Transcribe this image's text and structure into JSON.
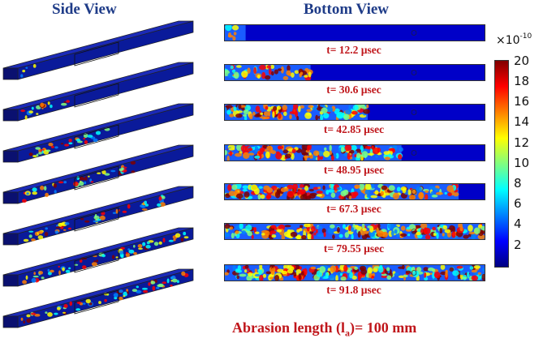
{
  "side_view_title": "Side View",
  "bottom_view_title": "Bottom View",
  "frames": [
    {
      "time_label": "t= 12.2 µsec",
      "wave_extent": 0.08,
      "intensity": 0.25
    },
    {
      "time_label": "t= 30.6 µsec",
      "wave_extent": 0.33,
      "intensity": 0.55
    },
    {
      "time_label": "t= 42.85 µsec",
      "wave_extent": 0.55,
      "intensity": 0.75
    },
    {
      "time_label": "t= 48.95 µsec",
      "wave_extent": 0.68,
      "intensity": 0.8
    },
    {
      "time_label": "t= 67.3 µsec",
      "wave_extent": 0.9,
      "intensity": 0.75
    },
    {
      "time_label": "t= 79.55 µsec",
      "wave_extent": 1.0,
      "intensity": 0.8
    },
    {
      "time_label": "t= 91.8 µsec",
      "wave_extent": 1.0,
      "intensity": 0.85
    }
  ],
  "colorbar": {
    "multiplier_base": "×10",
    "multiplier_exponent": "-10",
    "ticks": [
      "20",
      "18",
      "16",
      "14",
      "12",
      "10",
      "8",
      "6",
      "4",
      "2"
    ],
    "colors": [
      "#00007f",
      "#0000ff",
      "#0080ff",
      "#00ffff",
      "#80ff80",
      "#ffff00",
      "#ff8000",
      "#ff0000",
      "#7f0000"
    ]
  },
  "caption": {
    "prefix": "Abrasion length (l",
    "subscript": "a",
    "suffix": ")= 100 mm"
  }
}
